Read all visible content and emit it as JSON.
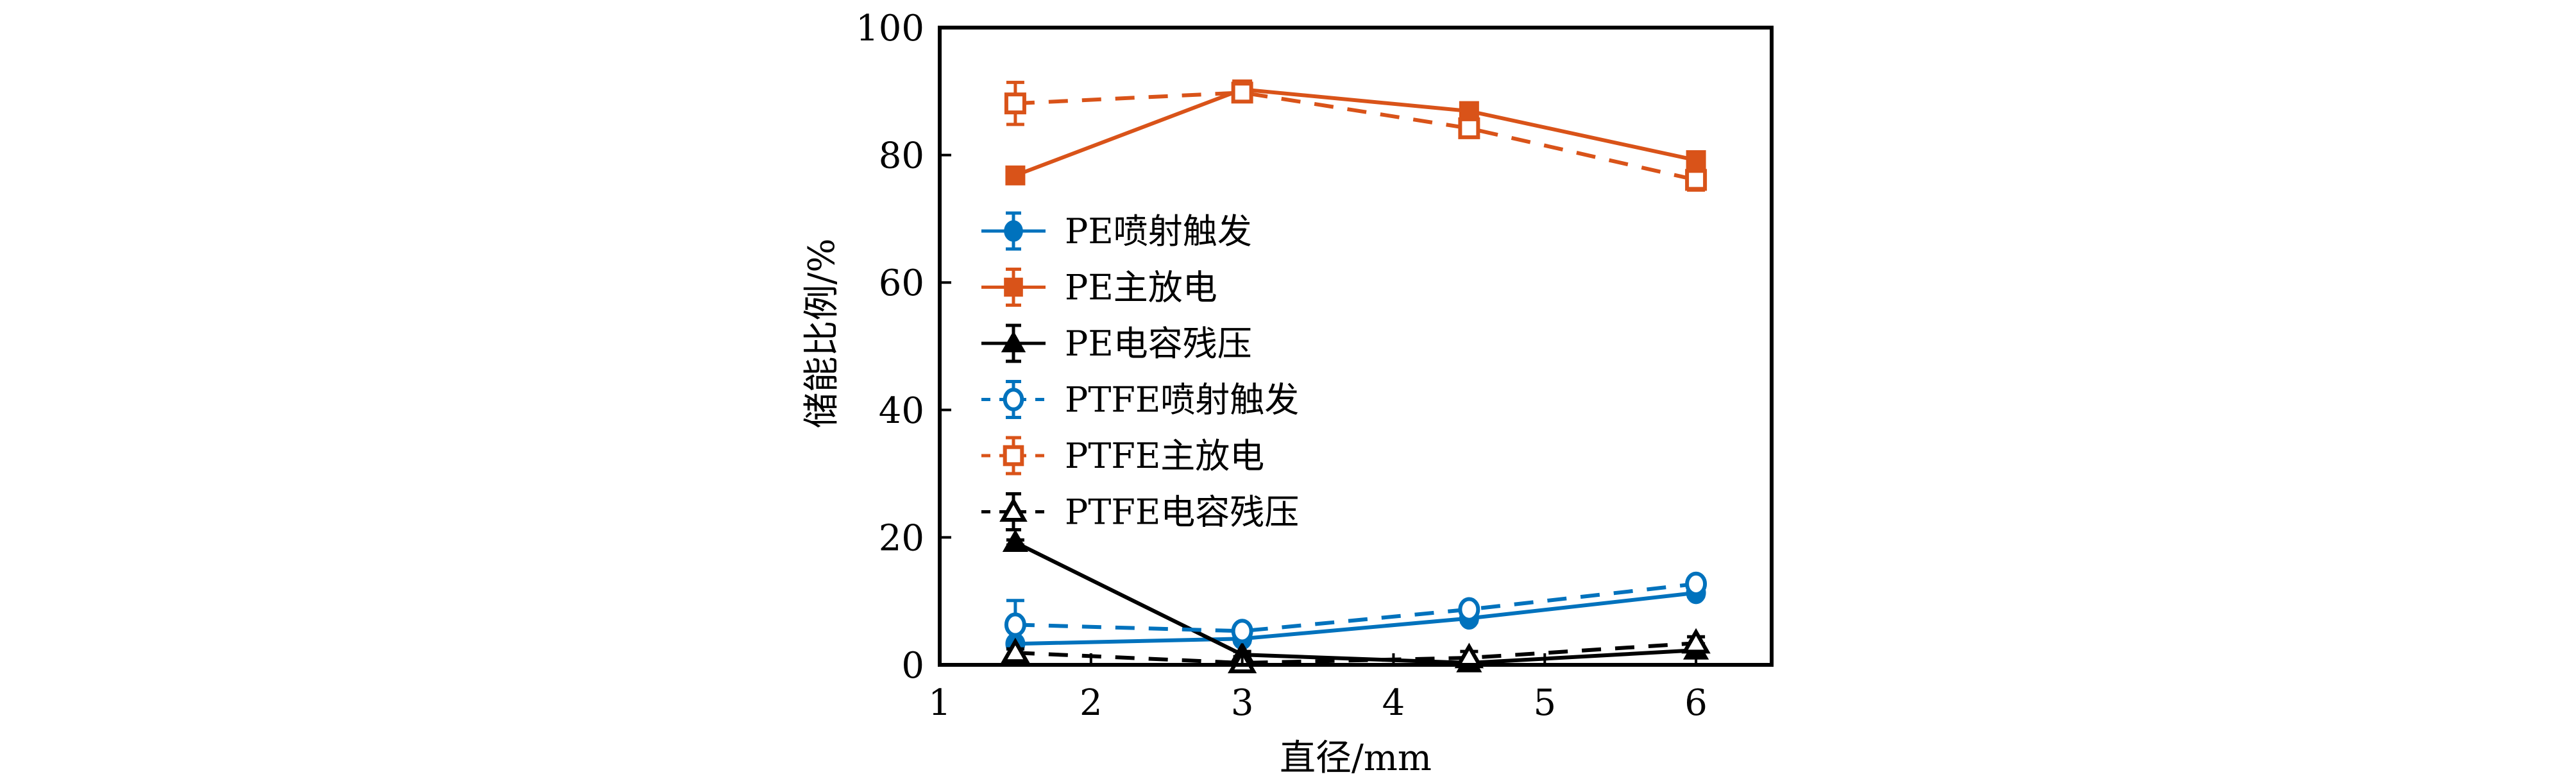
{
  "chart_data": {
    "type": "line",
    "title": "",
    "xlabel": "直径/mm",
    "ylabel": "储能比例/%",
    "xlim": [
      1,
      6.5
    ],
    "ylim": [
      0,
      100
    ],
    "xticks": [
      1,
      2,
      3,
      4,
      5,
      6
    ],
    "yticks": [
      0,
      20,
      40,
      60,
      80,
      100
    ],
    "xtick_labels": [
      "1",
      "2",
      "3",
      "4",
      "5",
      "6"
    ],
    "ytick_labels": [
      "0",
      "20",
      "40",
      "60",
      "80",
      "100"
    ],
    "grid": false,
    "legend_position": "center-left",
    "x": [
      1.5,
      3,
      4.5,
      6
    ],
    "series": [
      {
        "name": "PE喷射触发",
        "color": "#0072BD",
        "linestyle": "solid",
        "marker": "circle",
        "filled": true,
        "values": [
          3.3,
          4.1,
          7.3,
          11.3
        ],
        "errors": [
          0.5,
          0.6,
          0.6,
          0.6
        ]
      },
      {
        "name": "PE主放电",
        "color": "#D95319",
        "linestyle": "solid",
        "marker": "square",
        "filled": true,
        "values": [
          76.8,
          90.3,
          86.9,
          79.2
        ],
        "errors": [
          0.5,
          0.6,
          0.6,
          0.6
        ]
      },
      {
        "name": "PE电容残压",
        "color": "#000000",
        "linestyle": "solid",
        "marker": "triangle",
        "filled": true,
        "values": [
          19.2,
          1.6,
          0.3,
          2.3
        ],
        "errors": [
          0.4,
          0.5,
          0.4,
          1.0
        ]
      },
      {
        "name": "PTFE喷射触发",
        "color": "#0072BD",
        "linestyle": "dashed",
        "marker": "circle",
        "filled": false,
        "values": [
          6.3,
          5.3,
          8.7,
          12.7
        ],
        "errors": [
          3.8,
          0.5,
          0.5,
          0.7
        ]
      },
      {
        "name": "PTFE主放电",
        "color": "#D95319",
        "linestyle": "dashed",
        "marker": "square",
        "filled": false,
        "values": [
          88.1,
          89.8,
          84.2,
          76.1
        ],
        "errors": [
          3.3,
          0.5,
          0.6,
          1.6
        ]
      },
      {
        "name": "PTFE电容残压",
        "color": "#000000",
        "linestyle": "dashed",
        "marker": "triangle",
        "filled": false,
        "values": [
          1.9,
          0.3,
          1.1,
          3.4
        ],
        "errors": [
          0.6,
          1.0,
          1.0,
          1.0
        ]
      }
    ]
  }
}
